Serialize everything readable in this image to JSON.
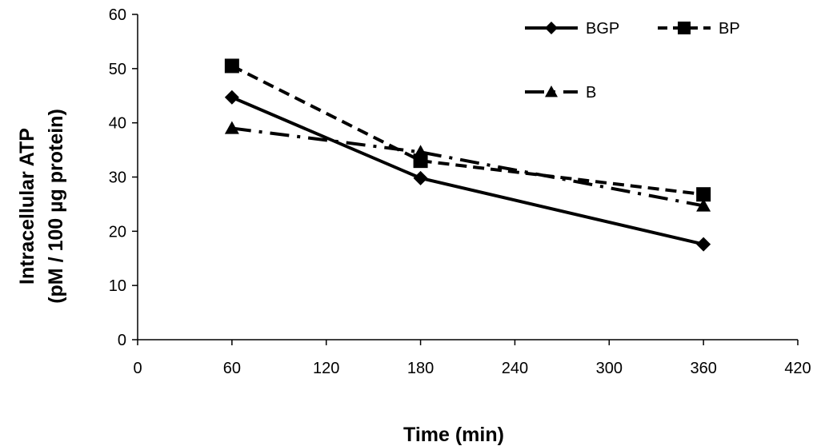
{
  "chart_data": {
    "type": "line",
    "xlabel": "Time (min)",
    "ylabel_lines": [
      "Intracellular ATP",
      "(pM / 100 µg protein)"
    ],
    "xlim": [
      0,
      420
    ],
    "ylim": [
      0,
      60
    ],
    "xticks": [
      0,
      60,
      120,
      180,
      240,
      300,
      360,
      420
    ],
    "yticks": [
      0,
      10,
      20,
      30,
      40,
      50,
      60
    ],
    "grid": false,
    "legend_position": "top-right",
    "series": [
      {
        "name": "BGP",
        "marker": "diamond",
        "line_style": "solid",
        "color": "#000000",
        "x": [
          60,
          180,
          360
        ],
        "y": [
          44.7,
          29.8,
          17.6
        ]
      },
      {
        "name": "BP",
        "marker": "square",
        "line_style": "dashed",
        "color": "#000000",
        "x": [
          60,
          180,
          360
        ],
        "y": [
          50.5,
          33.0,
          26.8
        ]
      },
      {
        "name": "B",
        "marker": "triangle",
        "line_style": "dash-dot",
        "color": "#000000",
        "x": [
          60,
          180,
          360
        ],
        "y": [
          39.0,
          34.6,
          24.7
        ]
      }
    ]
  }
}
